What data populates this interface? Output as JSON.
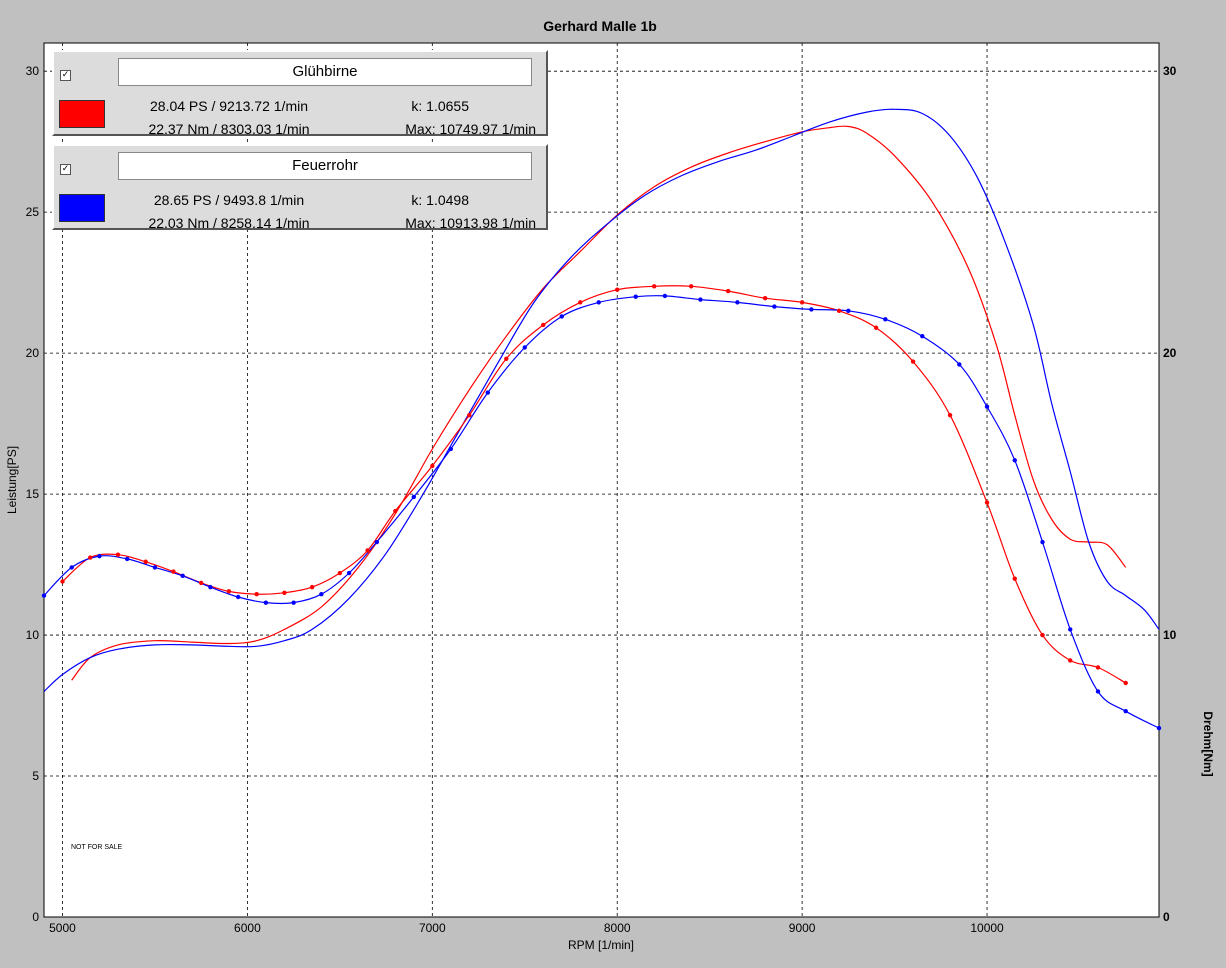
{
  "chart_data": {
    "type": "line",
    "title": "Gerhard Malle 1b",
    "xlabel": "RPM [1/min]",
    "ylabel_left": "Leistung[PS]",
    "ylabel_right": "Drehm[Nm]",
    "xlim": [
      4900,
      10930
    ],
    "ylim_left": [
      0,
      31
    ],
    "ylim_right": [
      0,
      31
    ],
    "x_ticks": [
      5000,
      6000,
      7000,
      8000,
      9000,
      10000
    ],
    "y_ticks_left": [
      0,
      5,
      10,
      15,
      20,
      25,
      30
    ],
    "y_ticks_right": [
      0,
      10,
      20,
      30
    ],
    "grid": true,
    "note": "NOT FOR SALE",
    "series": [
      {
        "name": "Glühbirne",
        "quantity": "power",
        "color": "#ff0000",
        "points": [
          [
            5050,
            8.4
          ],
          [
            5150,
            9.2
          ],
          [
            5300,
            9.65
          ],
          [
            5500,
            9.8
          ],
          [
            5700,
            9.75
          ],
          [
            5900,
            9.7
          ],
          [
            6050,
            9.8
          ],
          [
            6200,
            10.2
          ],
          [
            6400,
            11.0
          ],
          [
            6600,
            12.4
          ],
          [
            6800,
            14.3
          ],
          [
            7000,
            16.6
          ],
          [
            7200,
            18.7
          ],
          [
            7400,
            20.6
          ],
          [
            7600,
            22.3
          ],
          [
            7800,
            23.6
          ],
          [
            8000,
            24.9
          ],
          [
            8200,
            25.9
          ],
          [
            8400,
            26.6
          ],
          [
            8600,
            27.1
          ],
          [
            8800,
            27.5
          ],
          [
            9000,
            27.85
          ],
          [
            9150,
            28.0
          ],
          [
            9250,
            28.04
          ],
          [
            9350,
            27.8
          ],
          [
            9500,
            27.0
          ],
          [
            9700,
            25.4
          ],
          [
            9900,
            23.0
          ],
          [
            10050,
            20.3
          ],
          [
            10150,
            17.8
          ],
          [
            10250,
            15.5
          ],
          [
            10350,
            14.1
          ],
          [
            10450,
            13.4
          ],
          [
            10550,
            13.3
          ],
          [
            10650,
            13.2
          ],
          [
            10750,
            12.4
          ]
        ]
      },
      {
        "name": "Feuerrohr",
        "quantity": "power",
        "color": "#0000ff",
        "points": [
          [
            4900,
            8.0
          ],
          [
            5000,
            8.6
          ],
          [
            5150,
            9.2
          ],
          [
            5300,
            9.5
          ],
          [
            5500,
            9.65
          ],
          [
            5700,
            9.65
          ],
          [
            5900,
            9.6
          ],
          [
            6050,
            9.6
          ],
          [
            6200,
            9.8
          ],
          [
            6350,
            10.2
          ],
          [
            6550,
            11.3
          ],
          [
            6750,
            12.9
          ],
          [
            6950,
            15.0
          ],
          [
            7150,
            17.3
          ],
          [
            7350,
            19.6
          ],
          [
            7550,
            21.8
          ],
          [
            7750,
            23.4
          ],
          [
            7950,
            24.6
          ],
          [
            8150,
            25.6
          ],
          [
            8350,
            26.3
          ],
          [
            8550,
            26.8
          ],
          [
            8750,
            27.2
          ],
          [
            8950,
            27.7
          ],
          [
            9150,
            28.2
          ],
          [
            9350,
            28.55
          ],
          [
            9500,
            28.65
          ],
          [
            9650,
            28.5
          ],
          [
            9800,
            27.7
          ],
          [
            9950,
            26.2
          ],
          [
            10100,
            23.9
          ],
          [
            10250,
            21.0
          ],
          [
            10350,
            18.2
          ],
          [
            10450,
            15.8
          ],
          [
            10550,
            13.3
          ],
          [
            10650,
            11.9
          ],
          [
            10750,
            11.4
          ],
          [
            10850,
            10.9
          ],
          [
            10930,
            10.2
          ]
        ]
      },
      {
        "name": "Glühbirne",
        "quantity": "torque",
        "color": "#ff0000",
        "points": [
          [
            5000,
            11.9
          ],
          [
            5150,
            12.75
          ],
          [
            5300,
            12.85
          ],
          [
            5450,
            12.6
          ],
          [
            5600,
            12.25
          ],
          [
            5750,
            11.85
          ],
          [
            5900,
            11.55
          ],
          [
            6050,
            11.45
          ],
          [
            6200,
            11.5
          ],
          [
            6350,
            11.7
          ],
          [
            6500,
            12.2
          ],
          [
            6650,
            13.0
          ],
          [
            6800,
            14.4
          ],
          [
            7000,
            16.0
          ],
          [
            7200,
            17.8
          ],
          [
            7400,
            19.8
          ],
          [
            7600,
            21.0
          ],
          [
            7800,
            21.8
          ],
          [
            8000,
            22.25
          ],
          [
            8200,
            22.37
          ],
          [
            8400,
            22.37
          ],
          [
            8600,
            22.2
          ],
          [
            8800,
            21.95
          ],
          [
            9000,
            21.8
          ],
          [
            9200,
            21.5
          ],
          [
            9400,
            20.9
          ],
          [
            9600,
            19.7
          ],
          [
            9800,
            17.8
          ],
          [
            10000,
            14.7
          ],
          [
            10150,
            12.0
          ],
          [
            10300,
            10.0
          ],
          [
            10450,
            9.1
          ],
          [
            10600,
            8.85
          ],
          [
            10750,
            8.3
          ]
        ]
      },
      {
        "name": "Feuerrohr",
        "quantity": "torque",
        "color": "#0000ff",
        "points": [
          [
            4900,
            11.4
          ],
          [
            5050,
            12.4
          ],
          [
            5200,
            12.8
          ],
          [
            5350,
            12.7
          ],
          [
            5500,
            12.4
          ],
          [
            5650,
            12.1
          ],
          [
            5800,
            11.7
          ],
          [
            5950,
            11.35
          ],
          [
            6100,
            11.15
          ],
          [
            6250,
            11.15
          ],
          [
            6400,
            11.45
          ],
          [
            6550,
            12.2
          ],
          [
            6700,
            13.3
          ],
          [
            6900,
            14.9
          ],
          [
            7100,
            16.6
          ],
          [
            7300,
            18.6
          ],
          [
            7500,
            20.2
          ],
          [
            7700,
            21.3
          ],
          [
            7900,
            21.8
          ],
          [
            8100,
            22.0
          ],
          [
            8258,
            22.03
          ],
          [
            8450,
            21.9
          ],
          [
            8650,
            21.8
          ],
          [
            8850,
            21.65
          ],
          [
            9050,
            21.55
          ],
          [
            9250,
            21.5
          ],
          [
            9450,
            21.2
          ],
          [
            9650,
            20.6
          ],
          [
            9850,
            19.6
          ],
          [
            10000,
            18.1
          ],
          [
            10150,
            16.2
          ],
          [
            10300,
            13.3
          ],
          [
            10450,
            10.2
          ],
          [
            10600,
            8.0
          ],
          [
            10750,
            7.3
          ],
          [
            10930,
            6.7
          ]
        ]
      }
    ]
  },
  "legends": [
    {
      "name": "Glühbirne",
      "checked": "✓",
      "color": "#ff0000",
      "power": "28.04 PS / 9213.72 1/min",
      "torque": "22.37 Nm / 8303.03 1/min",
      "k": "k: 1.0655",
      "max": "Max: 10749.97 1/min"
    },
    {
      "name": "Feuerrohr",
      "checked": "✓",
      "color": "#0000ff",
      "power": "28.65 PS / 9493.8 1/min",
      "torque": "22.03 Nm / 8258.14 1/min",
      "k": "k: 1.0498",
      "max": "Max: 10913.98 1/min"
    }
  ]
}
